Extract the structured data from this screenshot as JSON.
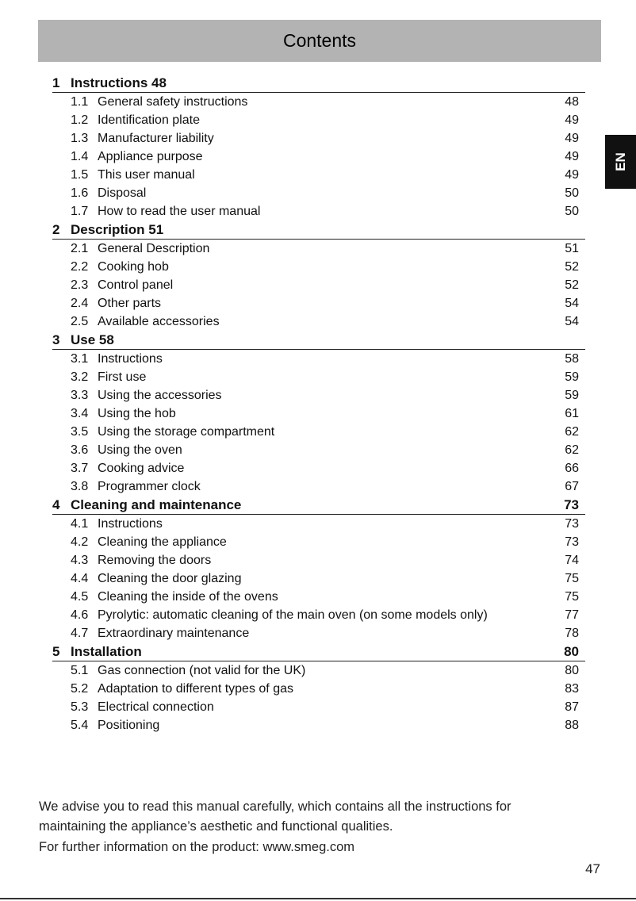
{
  "header": {
    "title": "Contents"
  },
  "language_tab": "EN",
  "sections": [
    {
      "num": "1",
      "title": "Instructions 48",
      "page": "",
      "items": [
        {
          "num": "1.1",
          "title": "General safety instructions",
          "page": "48"
        },
        {
          "num": "1.2",
          "title": "Identification plate",
          "page": "49"
        },
        {
          "num": "1.3",
          "title": "Manufacturer liability",
          "page": "49"
        },
        {
          "num": "1.4",
          "title": "Appliance purpose",
          "page": "49"
        },
        {
          "num": "1.5",
          "title": "This user manual",
          "page": "49"
        },
        {
          "num": "1.6",
          "title": "Disposal",
          "page": "50"
        },
        {
          "num": "1.7",
          "title": "How to read the user manual",
          "page": "50"
        }
      ]
    },
    {
      "num": "2",
      "title": "Description 51",
      "page": "",
      "items": [
        {
          "num": "2.1",
          "title": "General Description",
          "page": "51"
        },
        {
          "num": "2.2",
          "title": "Cooking hob",
          "page": "52"
        },
        {
          "num": "2.3",
          "title": "Control panel",
          "page": "52"
        },
        {
          "num": "2.4",
          "title": "Other parts",
          "page": "54"
        },
        {
          "num": "2.5",
          "title": "Available accessories",
          "page": "54"
        }
      ]
    },
    {
      "num": "3",
      "title": "Use 58",
      "page": "",
      "items": [
        {
          "num": "3.1",
          "title": "Instructions",
          "page": "58"
        },
        {
          "num": "3.2",
          "title": "First use",
          "page": "59"
        },
        {
          "num": "3.3",
          "title": "Using the accessories",
          "page": "59"
        },
        {
          "num": "3.4",
          "title": "Using the hob",
          "page": "61"
        },
        {
          "num": "3.5",
          "title": "Using the storage compartment",
          "page": "62"
        },
        {
          "num": "3.6",
          "title": "Using the oven",
          "page": "62"
        },
        {
          "num": "3.7",
          "title": "Cooking advice",
          "page": "66"
        },
        {
          "num": "3.8",
          "title": "Programmer clock",
          "page": "67"
        }
      ]
    },
    {
      "num": "4",
      "title": "Cleaning and maintenance",
      "page": "73",
      "items": [
        {
          "num": "4.1",
          "title": "Instructions",
          "page": "73"
        },
        {
          "num": "4.2",
          "title": "Cleaning the appliance",
          "page": "73"
        },
        {
          "num": "4.3",
          "title": "Removing the doors",
          "page": "74"
        },
        {
          "num": "4.4",
          "title": "Cleaning the door glazing",
          "page": "75"
        },
        {
          "num": "4.5",
          "title": "Cleaning the inside of the ovens",
          "page": "75"
        },
        {
          "num": "4.6",
          "title": "Pyrolytic: automatic cleaning of the main oven (on some models only)",
          "page": "77"
        },
        {
          "num": "4.7",
          "title": "Extraordinary maintenance",
          "page": "78"
        }
      ]
    },
    {
      "num": "5",
      "title": "Installation",
      "page": "80",
      "items": [
        {
          "num": "5.1",
          "title": "Gas connection (not valid for the UK)",
          "page": "80"
        },
        {
          "num": "5.2",
          "title": "Adaptation to different types of gas",
          "page": "83"
        },
        {
          "num": "5.3",
          "title": "Electrical connection",
          "page": "87"
        },
        {
          "num": "5.4",
          "title": "Positioning",
          "page": "88"
        }
      ]
    }
  ],
  "footer": {
    "advice": "We advise you to read this manual carefully, which contains all the instructions for maintaining the appliance’s aesthetic and functional qualities.",
    "info": "For further information on the product: www.smeg.com"
  },
  "page_number": "47"
}
